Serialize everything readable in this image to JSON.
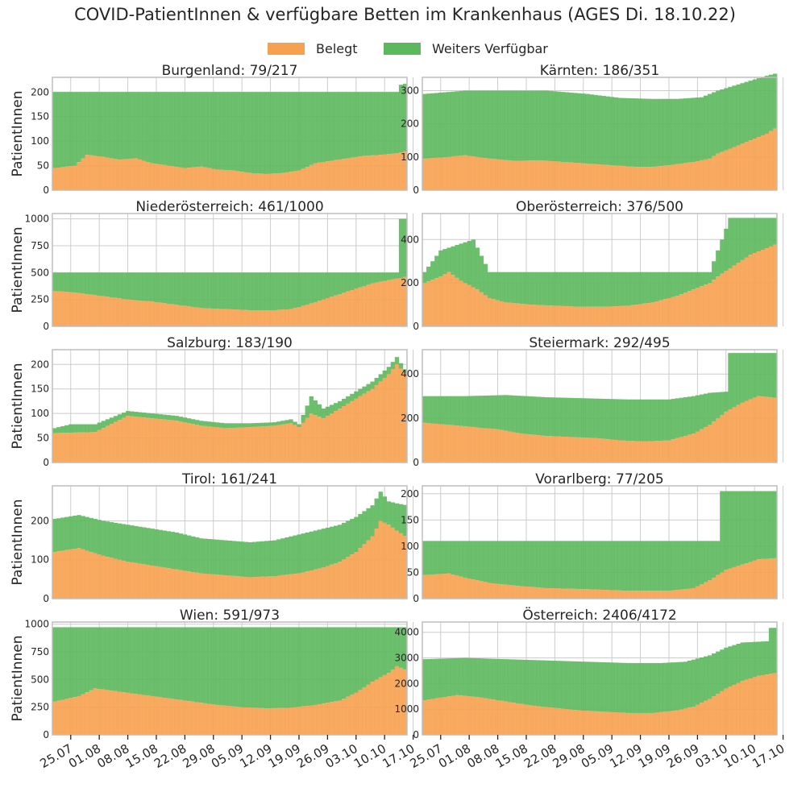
{
  "title": "COVID-PatientInnen & verfügbare Betten im Krankenhaus (AGES Di. 18.10.22)",
  "legend": {
    "belegt": "Belegt",
    "verfuegbar": "Weiters Verfügbar"
  },
  "colors": {
    "belegt": "#f6a14f",
    "verfuegbar": "#5cb85c",
    "grid": "#cccccc",
    "axis": "#bdbdbd",
    "text": "#262626"
  },
  "ylabel": "PatientInnen",
  "x_tick_labels": [
    "25.07",
    "01.08",
    "08.08",
    "15.08",
    "22.08",
    "29.08",
    "05.09",
    "12.09",
    "19.09",
    "26.09",
    "03.10",
    "10.10",
    "17.10"
  ],
  "chart_data": [
    {
      "type": "bar",
      "title": "Burgenland: 79/217",
      "ylim": [
        0,
        230
      ],
      "yticks": [
        0,
        50,
        100,
        150,
        200
      ],
      "anchors_belegt": [
        [
          0,
          45
        ],
        [
          5,
          50
        ],
        [
          8,
          72
        ],
        [
          12,
          68
        ],
        [
          16,
          62
        ],
        [
          20,
          65
        ],
        [
          24,
          55
        ],
        [
          28,
          50
        ],
        [
          32,
          45
        ],
        [
          36,
          48
        ],
        [
          40,
          42
        ],
        [
          44,
          40
        ],
        [
          48,
          35
        ],
        [
          52,
          33
        ],
        [
          56,
          35
        ],
        [
          60,
          40
        ],
        [
          64,
          55
        ],
        [
          68,
          60
        ],
        [
          72,
          65
        ],
        [
          76,
          70
        ],
        [
          80,
          72
        ],
        [
          84,
          75
        ],
        [
          86,
          79
        ]
      ],
      "anchors_gesamt": [
        [
          0,
          200
        ],
        [
          84,
          200
        ],
        [
          85,
          215
        ],
        [
          86,
          217
        ]
      ]
    },
    {
      "type": "bar",
      "title": "Kärnten: 186/351",
      "ylim": [
        0,
        340
      ],
      "yticks": [
        0,
        100,
        200,
        300
      ],
      "anchors_belegt": [
        [
          0,
          95
        ],
        [
          6,
          100
        ],
        [
          10,
          105
        ],
        [
          16,
          95
        ],
        [
          22,
          88
        ],
        [
          28,
          90
        ],
        [
          34,
          85
        ],
        [
          40,
          80
        ],
        [
          46,
          75
        ],
        [
          52,
          70
        ],
        [
          56,
          70
        ],
        [
          60,
          75
        ],
        [
          66,
          85
        ],
        [
          70,
          95
        ],
        [
          72,
          110
        ],
        [
          76,
          130
        ],
        [
          80,
          150
        ],
        [
          84,
          170
        ],
        [
          86,
          186
        ]
      ],
      "anchors_gesamt": [
        [
          0,
          290
        ],
        [
          10,
          300
        ],
        [
          20,
          300
        ],
        [
          30,
          300
        ],
        [
          40,
          290
        ],
        [
          48,
          278
        ],
        [
          56,
          275
        ],
        [
          62,
          275
        ],
        [
          68,
          280
        ],
        [
          72,
          300
        ],
        [
          76,
          315
        ],
        [
          80,
          330
        ],
        [
          84,
          345
        ],
        [
          86,
          351
        ]
      ]
    },
    {
      "type": "bar",
      "title": "Niederösterreich: 461/1000",
      "ylim": [
        0,
        1050
      ],
      "yticks": [
        0,
        250,
        500,
        750,
        1000
      ],
      "anchors_belegt": [
        [
          0,
          330
        ],
        [
          6,
          310
        ],
        [
          12,
          280
        ],
        [
          18,
          250
        ],
        [
          24,
          230
        ],
        [
          30,
          200
        ],
        [
          36,
          170
        ],
        [
          42,
          160
        ],
        [
          48,
          150
        ],
        [
          54,
          150
        ],
        [
          58,
          160
        ],
        [
          62,
          200
        ],
        [
          66,
          250
        ],
        [
          70,
          300
        ],
        [
          74,
          350
        ],
        [
          78,
          400
        ],
        [
          82,
          430
        ],
        [
          85,
          450
        ],
        [
          86,
          461
        ]
      ],
      "anchors_gesamt": [
        [
          0,
          500
        ],
        [
          84,
          500
        ],
        [
          85,
          1000
        ],
        [
          86,
          1000
        ]
      ]
    },
    {
      "type": "bar",
      "title": "Oberösterreich: 376/500",
      "ylim": [
        0,
        520
      ],
      "yticks": [
        0,
        200,
        400
      ],
      "anchors_belegt": [
        [
          0,
          200
        ],
        [
          4,
          230
        ],
        [
          6,
          250
        ],
        [
          9,
          210
        ],
        [
          13,
          170
        ],
        [
          16,
          130
        ],
        [
          20,
          110
        ],
        [
          26,
          100
        ],
        [
          32,
          95
        ],
        [
          38,
          90
        ],
        [
          44,
          90
        ],
        [
          50,
          95
        ],
        [
          56,
          110
        ],
        [
          62,
          140
        ],
        [
          66,
          170
        ],
        [
          70,
          200
        ],
        [
          72,
          230
        ],
        [
          76,
          280
        ],
        [
          80,
          330
        ],
        [
          84,
          360
        ],
        [
          86,
          376
        ]
      ],
      "anchors_gesamt": [
        [
          0,
          250
        ],
        [
          2,
          300
        ],
        [
          4,
          350
        ],
        [
          12,
          400
        ],
        [
          16,
          250
        ],
        [
          70,
          250
        ],
        [
          71,
          300
        ],
        [
          75,
          500
        ],
        [
          86,
          500
        ]
      ]
    },
    {
      "type": "bar",
      "title": "Salzburg: 183/190",
      "ylim": [
        0,
        230
      ],
      "yticks": [
        0,
        50,
        100,
        150,
        200
      ],
      "anchors_belegt": [
        [
          0,
          60
        ],
        [
          10,
          62
        ],
        [
          18,
          95
        ],
        [
          24,
          90
        ],
        [
          30,
          85
        ],
        [
          36,
          75
        ],
        [
          42,
          70
        ],
        [
          48,
          72
        ],
        [
          54,
          75
        ],
        [
          58,
          80
        ],
        [
          60,
          72
        ],
        [
          63,
          100
        ],
        [
          66,
          90
        ],
        [
          70,
          110
        ],
        [
          74,
          130
        ],
        [
          78,
          150
        ],
        [
          82,
          180
        ],
        [
          84,
          200
        ],
        [
          86,
          183
        ]
      ],
      "anchors_gesamt": [
        [
          0,
          70
        ],
        [
          4,
          78
        ],
        [
          10,
          78
        ],
        [
          18,
          105
        ],
        [
          24,
          100
        ],
        [
          30,
          95
        ],
        [
          36,
          85
        ],
        [
          42,
          80
        ],
        [
          48,
          80
        ],
        [
          54,
          82
        ],
        [
          58,
          88
        ],
        [
          60,
          78
        ],
        [
          63,
          135
        ],
        [
          66,
          110
        ],
        [
          70,
          125
        ],
        [
          74,
          145
        ],
        [
          78,
          165
        ],
        [
          82,
          195
        ],
        [
          84,
          215
        ],
        [
          86,
          190
        ]
      ]
    },
    {
      "type": "bar",
      "title": "Steiermark: 292/495",
      "ylim": [
        0,
        510
      ],
      "yticks": [
        0,
        200,
        400
      ],
      "anchors_belegt": [
        [
          0,
          180
        ],
        [
          6,
          170
        ],
        [
          12,
          160
        ],
        [
          18,
          150
        ],
        [
          24,
          130
        ],
        [
          30,
          120
        ],
        [
          36,
          115
        ],
        [
          42,
          110
        ],
        [
          48,
          100
        ],
        [
          54,
          95
        ],
        [
          60,
          100
        ],
        [
          66,
          130
        ],
        [
          70,
          170
        ],
        [
          74,
          230
        ],
        [
          78,
          270
        ],
        [
          82,
          300
        ],
        [
          86,
          292
        ]
      ],
      "anchors_gesamt": [
        [
          0,
          300
        ],
        [
          10,
          300
        ],
        [
          20,
          305
        ],
        [
          30,
          295
        ],
        [
          40,
          290
        ],
        [
          50,
          285
        ],
        [
          60,
          285
        ],
        [
          66,
          300
        ],
        [
          70,
          315
        ],
        [
          74,
          320
        ],
        [
          75,
          495
        ],
        [
          86,
          495
        ]
      ]
    },
    {
      "type": "bar",
      "title": "Tirol: 161/241",
      "ylim": [
        0,
        290
      ],
      "yticks": [
        0,
        100,
        200
      ],
      "anchors_belegt": [
        [
          0,
          120
        ],
        [
          6,
          130
        ],
        [
          12,
          110
        ],
        [
          18,
          95
        ],
        [
          24,
          85
        ],
        [
          30,
          75
        ],
        [
          36,
          65
        ],
        [
          42,
          60
        ],
        [
          48,
          55
        ],
        [
          54,
          58
        ],
        [
          60,
          65
        ],
        [
          66,
          80
        ],
        [
          70,
          95
        ],
        [
          74,
          120
        ],
        [
          78,
          160
        ],
        [
          80,
          200
        ],
        [
          82,
          190
        ],
        [
          84,
          175
        ],
        [
          86,
          161
        ]
      ],
      "anchors_gesamt": [
        [
          0,
          205
        ],
        [
          6,
          215
        ],
        [
          12,
          200
        ],
        [
          18,
          190
        ],
        [
          24,
          180
        ],
        [
          30,
          170
        ],
        [
          36,
          155
        ],
        [
          42,
          150
        ],
        [
          48,
          145
        ],
        [
          54,
          150
        ],
        [
          60,
          165
        ],
        [
          66,
          180
        ],
        [
          70,
          190
        ],
        [
          74,
          210
        ],
        [
          78,
          240
        ],
        [
          80,
          275
        ],
        [
          82,
          250
        ],
        [
          84,
          245
        ],
        [
          86,
          241
        ]
      ]
    },
    {
      "type": "bar",
      "title": "Vorarlberg: 77/205",
      "ylim": [
        0,
        215
      ],
      "yticks": [
        0,
        50,
        100,
        150,
        200
      ],
      "anchors_belegt": [
        [
          0,
          45
        ],
        [
          6,
          48
        ],
        [
          10,
          40
        ],
        [
          16,
          30
        ],
        [
          22,
          25
        ],
        [
          30,
          20
        ],
        [
          40,
          18
        ],
        [
          50,
          15
        ],
        [
          60,
          15
        ],
        [
          66,
          20
        ],
        [
          70,
          35
        ],
        [
          74,
          55
        ],
        [
          78,
          65
        ],
        [
          82,
          75
        ],
        [
          86,
          77
        ]
      ],
      "anchors_gesamt": [
        [
          0,
          110
        ],
        [
          72,
          110
        ],
        [
          73,
          205
        ],
        [
          86,
          205
        ]
      ]
    },
    {
      "type": "bar",
      "title": "Wien: 591/973",
      "ylim": [
        0,
        1020
      ],
      "yticks": [
        0,
        250,
        500,
        750,
        1000
      ],
      "anchors_belegt": [
        [
          0,
          300
        ],
        [
          6,
          350
        ],
        [
          10,
          420
        ],
        [
          16,
          390
        ],
        [
          22,
          360
        ],
        [
          28,
          330
        ],
        [
          34,
          300
        ],
        [
          40,
          270
        ],
        [
          46,
          250
        ],
        [
          52,
          240
        ],
        [
          58,
          245
        ],
        [
          64,
          270
        ],
        [
          70,
          310
        ],
        [
          74,
          380
        ],
        [
          78,
          480
        ],
        [
          82,
          560
        ],
        [
          84,
          620
        ],
        [
          86,
          591
        ]
      ],
      "anchors_gesamt": [
        [
          0,
          973
        ],
        [
          86,
          973
        ]
      ]
    },
    {
      "type": "bar",
      "title": "Österreich: 2406/4172",
      "ylim": [
        0,
        4400
      ],
      "yticks": [
        0,
        1000,
        2000,
        3000,
        4000
      ],
      "anchors_belegt": [
        [
          0,
          1350
        ],
        [
          8,
          1550
        ],
        [
          14,
          1450
        ],
        [
          20,
          1300
        ],
        [
          26,
          1150
        ],
        [
          32,
          1050
        ],
        [
          38,
          950
        ],
        [
          44,
          900
        ],
        [
          50,
          850
        ],
        [
          56,
          850
        ],
        [
          62,
          950
        ],
        [
          66,
          1100
        ],
        [
          70,
          1400
        ],
        [
          74,
          1800
        ],
        [
          78,
          2100
        ],
        [
          82,
          2300
        ],
        [
          86,
          2406
        ]
      ],
      "anchors_gesamt": [
        [
          0,
          2950
        ],
        [
          10,
          3000
        ],
        [
          20,
          2950
        ],
        [
          30,
          2900
        ],
        [
          40,
          2850
        ],
        [
          50,
          2800
        ],
        [
          58,
          2800
        ],
        [
          64,
          2850
        ],
        [
          70,
          3100
        ],
        [
          74,
          3400
        ],
        [
          78,
          3600
        ],
        [
          84,
          3650
        ],
        [
          85,
          4172
        ],
        [
          86,
          4172
        ]
      ]
    }
  ]
}
